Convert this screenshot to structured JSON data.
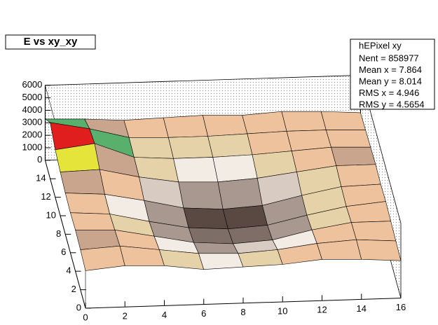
{
  "chart_data": {
    "type": "surface",
    "title": "E vs xy_xy",
    "stats": {
      "name": "hEPixel xy",
      "lines": [
        "Nent = 858977",
        "Mean x = 7.864",
        "Mean y = 8.014",
        "RMS x = 4.946",
        "RMS y = 4.5654"
      ]
    },
    "x": [
      0,
      2,
      4,
      6,
      8,
      10,
      12,
      14,
      16
    ],
    "y": [
      0,
      2,
      4,
      6,
      8,
      10,
      12,
      14,
      16
    ],
    "z": [
      [
        3000,
        3300,
        3200,
        2800,
        2900,
        3000,
        3300,
        3200,
        3000
      ],
      [
        3200,
        3400,
        3000,
        2600,
        2500,
        2700,
        3100,
        3300,
        3100
      ],
      [
        3300,
        3200,
        2600,
        2000,
        1800,
        2000,
        2700,
        3200,
        3200
      ],
      [
        3200,
        3000,
        2300,
        1700,
        1500,
        1700,
        2400,
        3000,
        3300
      ],
      [
        3300,
        3100,
        2500,
        1800,
        1600,
        1800,
        2500,
        3100,
        3200
      ],
      [
        3500,
        3600,
        2900,
        2400,
        2300,
        2500,
        2900,
        3300,
        3300
      ],
      [
        3800,
        4200,
        3000,
        2800,
        2800,
        2900,
        3100,
        3300,
        3200
      ],
      [
        4500,
        3900,
        3100,
        3000,
        3000,
        3100,
        3200,
        3200,
        3100
      ],
      [
        3300,
        3200,
        3000,
        3100,
        3200,
        3100,
        3300,
        3200,
        3000
      ]
    ],
    "xlim": [
      0,
      16
    ],
    "ylim": [
      0,
      16
    ],
    "zlim": [
      0,
      6000
    ],
    "xticks": [
      0,
      2,
      4,
      6,
      8,
      10,
      12,
      14,
      16
    ],
    "yticks": [
      0,
      2,
      4,
      6,
      8,
      10,
      12,
      14
    ],
    "zticks": [
      0,
      1000,
      2000,
      3000,
      4000,
      5000,
      6000
    ],
    "palette": [
      "#5a4843",
      "#7f6e68",
      "#a89890",
      "#d8ccc2",
      "#f2ece4",
      "#e6d2a8",
      "#eec29c",
      "#c9a58e",
      "#58b06c",
      "#e4e43a",
      "#e01e1e",
      "#000000"
    ]
  }
}
